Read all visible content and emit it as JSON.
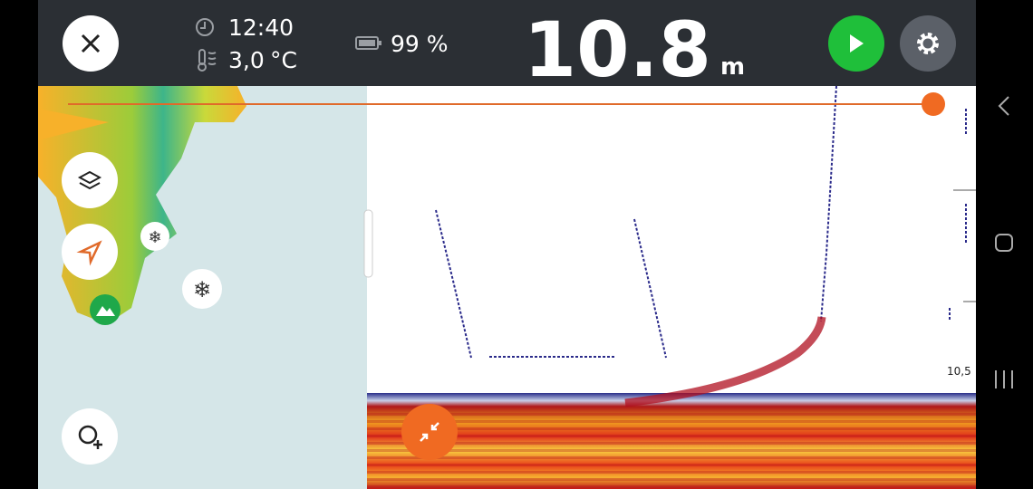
{
  "status": {
    "time": "12:40",
    "temperature": "3,0",
    "temperature_unit": "°C",
    "battery": "99 %"
  },
  "depth": {
    "value": "10.8",
    "unit": "m"
  },
  "sonar": {
    "depth_label": "10,5"
  }
}
